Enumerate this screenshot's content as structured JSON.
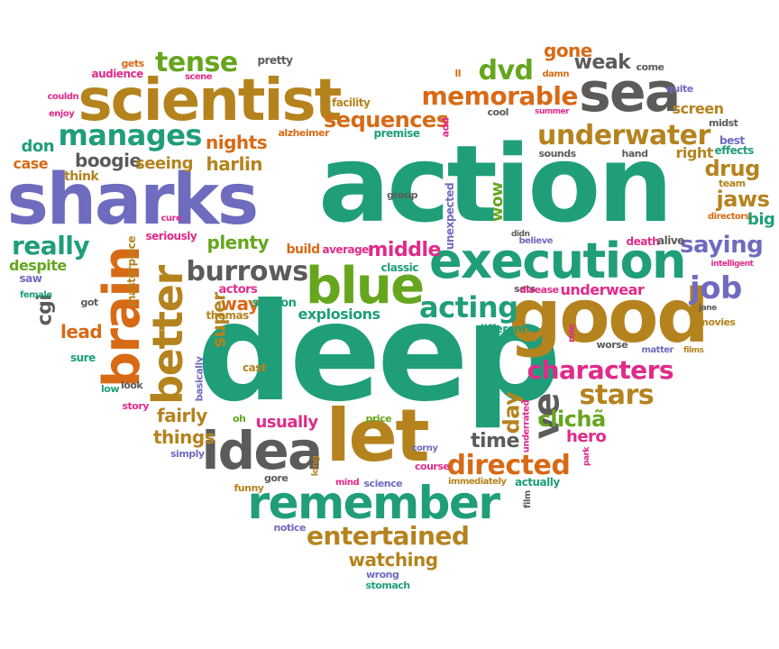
{
  "palette": {
    "teal": "#1f9e79",
    "gold": "#b5831e",
    "grey": "#5d5b5a",
    "purple": "#6f6bbf",
    "green": "#66a61e",
    "orange": "#d86a16",
    "pink": "#e02b8a"
  },
  "words": [
    {
      "text": "action",
      "color": "teal"
    },
    {
      "text": "deep",
      "color": "teal"
    },
    {
      "text": "sharks",
      "color": "purple"
    },
    {
      "text": "scientist",
      "color": "gold"
    },
    {
      "text": "good",
      "color": "gold"
    },
    {
      "text": "execution",
      "color": "teal"
    },
    {
      "text": "blue",
      "color": "green"
    },
    {
      "text": "let",
      "color": "gold"
    },
    {
      "text": "idea",
      "color": "grey"
    },
    {
      "text": "remember",
      "color": "teal"
    },
    {
      "text": "sea",
      "color": "grey"
    },
    {
      "text": "brain",
      "color": "orange"
    },
    {
      "text": "better",
      "color": "gold"
    },
    {
      "text": "burrows",
      "color": "grey"
    },
    {
      "text": "underwater",
      "color": "gold"
    },
    {
      "text": "memorable",
      "color": "orange"
    },
    {
      "text": "manages",
      "color": "teal"
    },
    {
      "text": "characters",
      "color": "pink"
    },
    {
      "text": "directed",
      "color": "orange"
    },
    {
      "text": "entertained",
      "color": "gold"
    },
    {
      "text": "dvd",
      "color": "green"
    },
    {
      "text": "tense",
      "color": "green"
    },
    {
      "text": "sequences",
      "color": "orange"
    },
    {
      "text": "acting",
      "color": "teal"
    },
    {
      "text": "job",
      "color": "purple"
    },
    {
      "text": "saying",
      "color": "purple"
    },
    {
      "text": "stars",
      "color": "gold"
    },
    {
      "text": "ve",
      "color": "grey"
    },
    {
      "text": "really",
      "color": "teal"
    },
    {
      "text": "plenty",
      "color": "green"
    },
    {
      "text": "harlin",
      "color": "gold"
    },
    {
      "text": "nights",
      "color": "orange"
    },
    {
      "text": "boogie",
      "color": "grey"
    },
    {
      "text": "seeing",
      "color": "gold"
    },
    {
      "text": "middle",
      "color": "pink"
    },
    {
      "text": "drug",
      "color": "gold"
    },
    {
      "text": "jaws",
      "color": "gold"
    },
    {
      "text": "weak",
      "color": "grey"
    },
    {
      "text": "gone",
      "color": "orange"
    },
    {
      "text": "clichã",
      "color": "green"
    },
    {
      "text": "fairly",
      "color": "gold"
    },
    {
      "text": "things",
      "color": "gold"
    },
    {
      "text": "usually",
      "color": "pink"
    },
    {
      "text": "watching",
      "color": "gold"
    },
    {
      "text": "time",
      "color": "grey"
    },
    {
      "text": "day",
      "color": "gold"
    },
    {
      "text": "way",
      "color": "orange"
    },
    {
      "text": "super",
      "color": "gold"
    },
    {
      "text": "lead",
      "color": "orange"
    },
    {
      "text": "cgi",
      "color": "grey"
    },
    {
      "text": "explosions",
      "color": "teal"
    },
    {
      "text": "screen",
      "color": "gold"
    },
    {
      "text": "right",
      "color": "gold"
    },
    {
      "text": "effects",
      "color": "teal"
    },
    {
      "text": "big",
      "color": "teal"
    },
    {
      "text": "hero",
      "color": "pink"
    },
    {
      "text": "wow",
      "color": "green"
    },
    {
      "text": "don",
      "color": "teal"
    },
    {
      "text": "case",
      "color": "orange"
    },
    {
      "text": "despite",
      "color": "green"
    },
    {
      "text": "think",
      "color": "gold"
    },
    {
      "text": "underwear",
      "color": "pink"
    },
    {
      "text": "sets",
      "color": "grey"
    },
    {
      "text": "disease",
      "color": "pink"
    },
    {
      "text": "build",
      "color": "orange"
    },
    {
      "text": "average",
      "color": "pink"
    },
    {
      "text": "classic",
      "color": "teal"
    },
    {
      "text": "seriously",
      "color": "pink"
    },
    {
      "text": "masterpiece",
      "color": "gold"
    },
    {
      "text": "saffron",
      "color": "teal"
    },
    {
      "text": "actors",
      "color": "pink"
    },
    {
      "text": "thomas",
      "color": "gold"
    },
    {
      "text": "different",
      "color": "teal"
    },
    {
      "text": "basically",
      "color": "purple"
    },
    {
      "text": "cast",
      "color": "gold"
    },
    {
      "text": "story",
      "color": "pink"
    },
    {
      "text": "low",
      "color": "teal"
    },
    {
      "text": "look",
      "color": "grey"
    },
    {
      "text": "sure",
      "color": "teal"
    },
    {
      "text": "oh",
      "color": "green"
    },
    {
      "text": "simply",
      "color": "purple"
    },
    {
      "text": "funny",
      "color": "gold"
    },
    {
      "text": "gore",
      "color": "grey"
    },
    {
      "text": "long",
      "color": "gold"
    },
    {
      "text": "mind",
      "color": "pink"
    },
    {
      "text": "science",
      "color": "purple"
    },
    {
      "text": "corny",
      "color": "purple"
    },
    {
      "text": "course",
      "color": "pink"
    },
    {
      "text": "price",
      "color": "green"
    },
    {
      "text": "underrated",
      "color": "pink"
    },
    {
      "text": "immediately",
      "color": "gold"
    },
    {
      "text": "actually",
      "color": "teal"
    },
    {
      "text": "film",
      "color": "grey"
    },
    {
      "text": "notice",
      "color": "purple"
    },
    {
      "text": "wrong",
      "color": "purple"
    },
    {
      "text": "stomach",
      "color": "teal"
    },
    {
      "text": "worse",
      "color": "grey"
    },
    {
      "text": "matter",
      "color": "purple"
    },
    {
      "text": "films",
      "color": "gold"
    },
    {
      "text": "role",
      "color": "pink"
    },
    {
      "text": "park",
      "color": "pink"
    },
    {
      "text": "movies",
      "color": "gold"
    },
    {
      "text": "jane",
      "color": "grey"
    },
    {
      "text": "intelligent",
      "color": "pink"
    },
    {
      "text": "death",
      "color": "pink"
    },
    {
      "text": "alive",
      "color": "grey"
    },
    {
      "text": "directors",
      "color": "orange"
    },
    {
      "text": "team",
      "color": "gold"
    },
    {
      "text": "best",
      "color": "purple"
    },
    {
      "text": "midst",
      "color": "grey"
    },
    {
      "text": "hand",
      "color": "grey"
    },
    {
      "text": "sounds",
      "color": "grey"
    },
    {
      "text": "believe",
      "color": "purple"
    },
    {
      "text": "didn",
      "color": "grey"
    },
    {
      "text": "unexpected",
      "color": "purple"
    },
    {
      "text": "group",
      "color": "grey"
    },
    {
      "text": "add",
      "color": "pink"
    },
    {
      "text": "premise",
      "color": "teal"
    },
    {
      "text": "alzheimer",
      "color": "orange"
    },
    {
      "text": "facility",
      "color": "gold"
    },
    {
      "text": "cool",
      "color": "grey"
    },
    {
      "text": "summer",
      "color": "pink"
    },
    {
      "text": "quite",
      "color": "purple"
    },
    {
      "text": "damn",
      "color": "orange"
    },
    {
      "text": "come",
      "color": "grey"
    },
    {
      "text": "ll",
      "color": "orange"
    },
    {
      "text": "pretty",
      "color": "grey"
    },
    {
      "text": "gets",
      "color": "orange"
    },
    {
      "text": "audience",
      "color": "pink"
    },
    {
      "text": "scene",
      "color": "pink"
    },
    {
      "text": "couldn",
      "color": "pink"
    },
    {
      "text": "enjoy",
      "color": "pink"
    },
    {
      "text": "cure",
      "color": "pink"
    },
    {
      "text": "got",
      "color": "grey"
    },
    {
      "text": "saw",
      "color": "purple"
    },
    {
      "text": "female",
      "color": "teal"
    }
  ]
}
